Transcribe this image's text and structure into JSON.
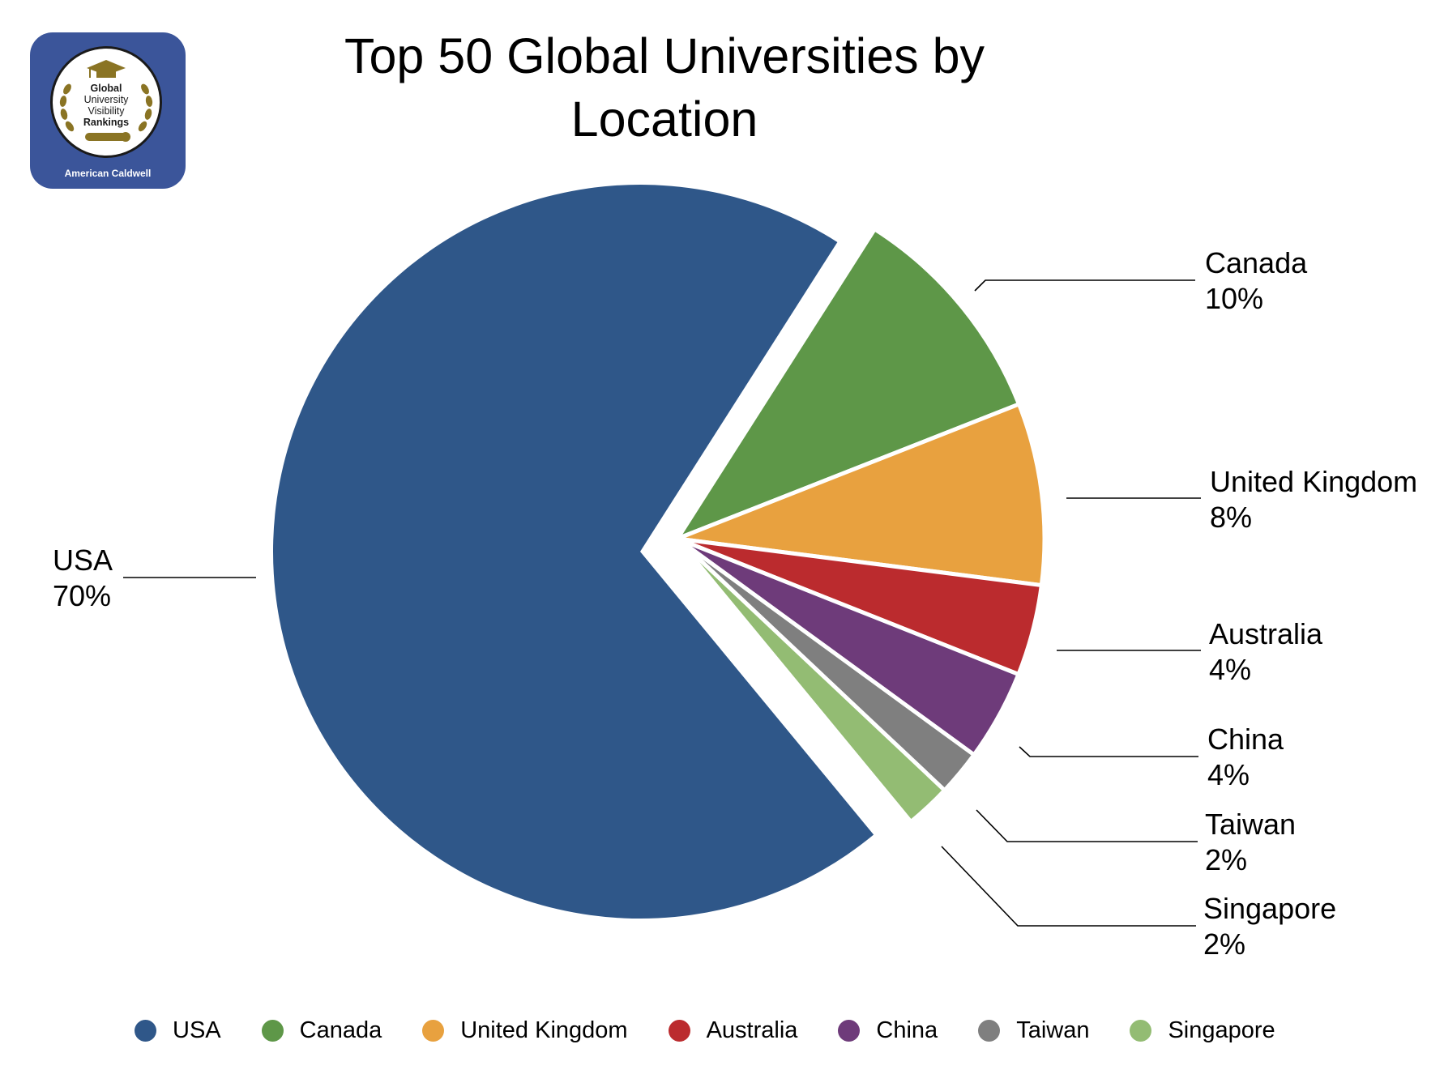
{
  "logo": {
    "lines": [
      "Global",
      "University",
      "Visibility",
      "Rankings"
    ],
    "footer": "American Caldwell",
    "bg_color": "#3b559a",
    "accent_color": "#8a7424"
  },
  "title": {
    "line1": "Top 50 Global Universities by",
    "line2": "Location"
  },
  "labels": [
    {
      "name": "USA",
      "pct": "70%"
    },
    {
      "name": "Canada",
      "pct": "10%"
    },
    {
      "name": "United Kingdom",
      "pct": "8%"
    },
    {
      "name": "Australia",
      "pct": "4%"
    },
    {
      "name": "China",
      "pct": "4%"
    },
    {
      "name": "Taiwan",
      "pct": "2%"
    },
    {
      "name": "Singapore",
      "pct": "2%"
    }
  ],
  "legend": [
    {
      "label": "USA",
      "color": "#2f5789"
    },
    {
      "label": "Canada",
      "color": "#5e9748"
    },
    {
      "label": "United Kingdom",
      "color": "#e8a13f"
    },
    {
      "label": "Australia",
      "color": "#bb2b2e"
    },
    {
      "label": "China",
      "color": "#6e3b7a"
    },
    {
      "label": "Taiwan",
      "color": "#7f7f7f"
    },
    {
      "label": "Singapore",
      "color": "#93bc73"
    }
  ],
  "chart_data": {
    "type": "pie",
    "title": "Top 50 Global Universities by Location",
    "categories": [
      "USA",
      "Canada",
      "United Kingdom",
      "Australia",
      "China",
      "Taiwan",
      "Singapore"
    ],
    "values": [
      70,
      10,
      8,
      4,
      4,
      2,
      2
    ],
    "unit": "%",
    "colors": [
      "#2f5789",
      "#5e9748",
      "#e8a13f",
      "#bb2b2e",
      "#6e3b7a",
      "#7f7f7f",
      "#93bc73"
    ],
    "exploded": [
      "Canada",
      "United Kingdom",
      "Australia",
      "China",
      "Taiwan",
      "Singapore"
    ],
    "legend_position": "bottom",
    "data_labels": "outside with leader lines"
  }
}
